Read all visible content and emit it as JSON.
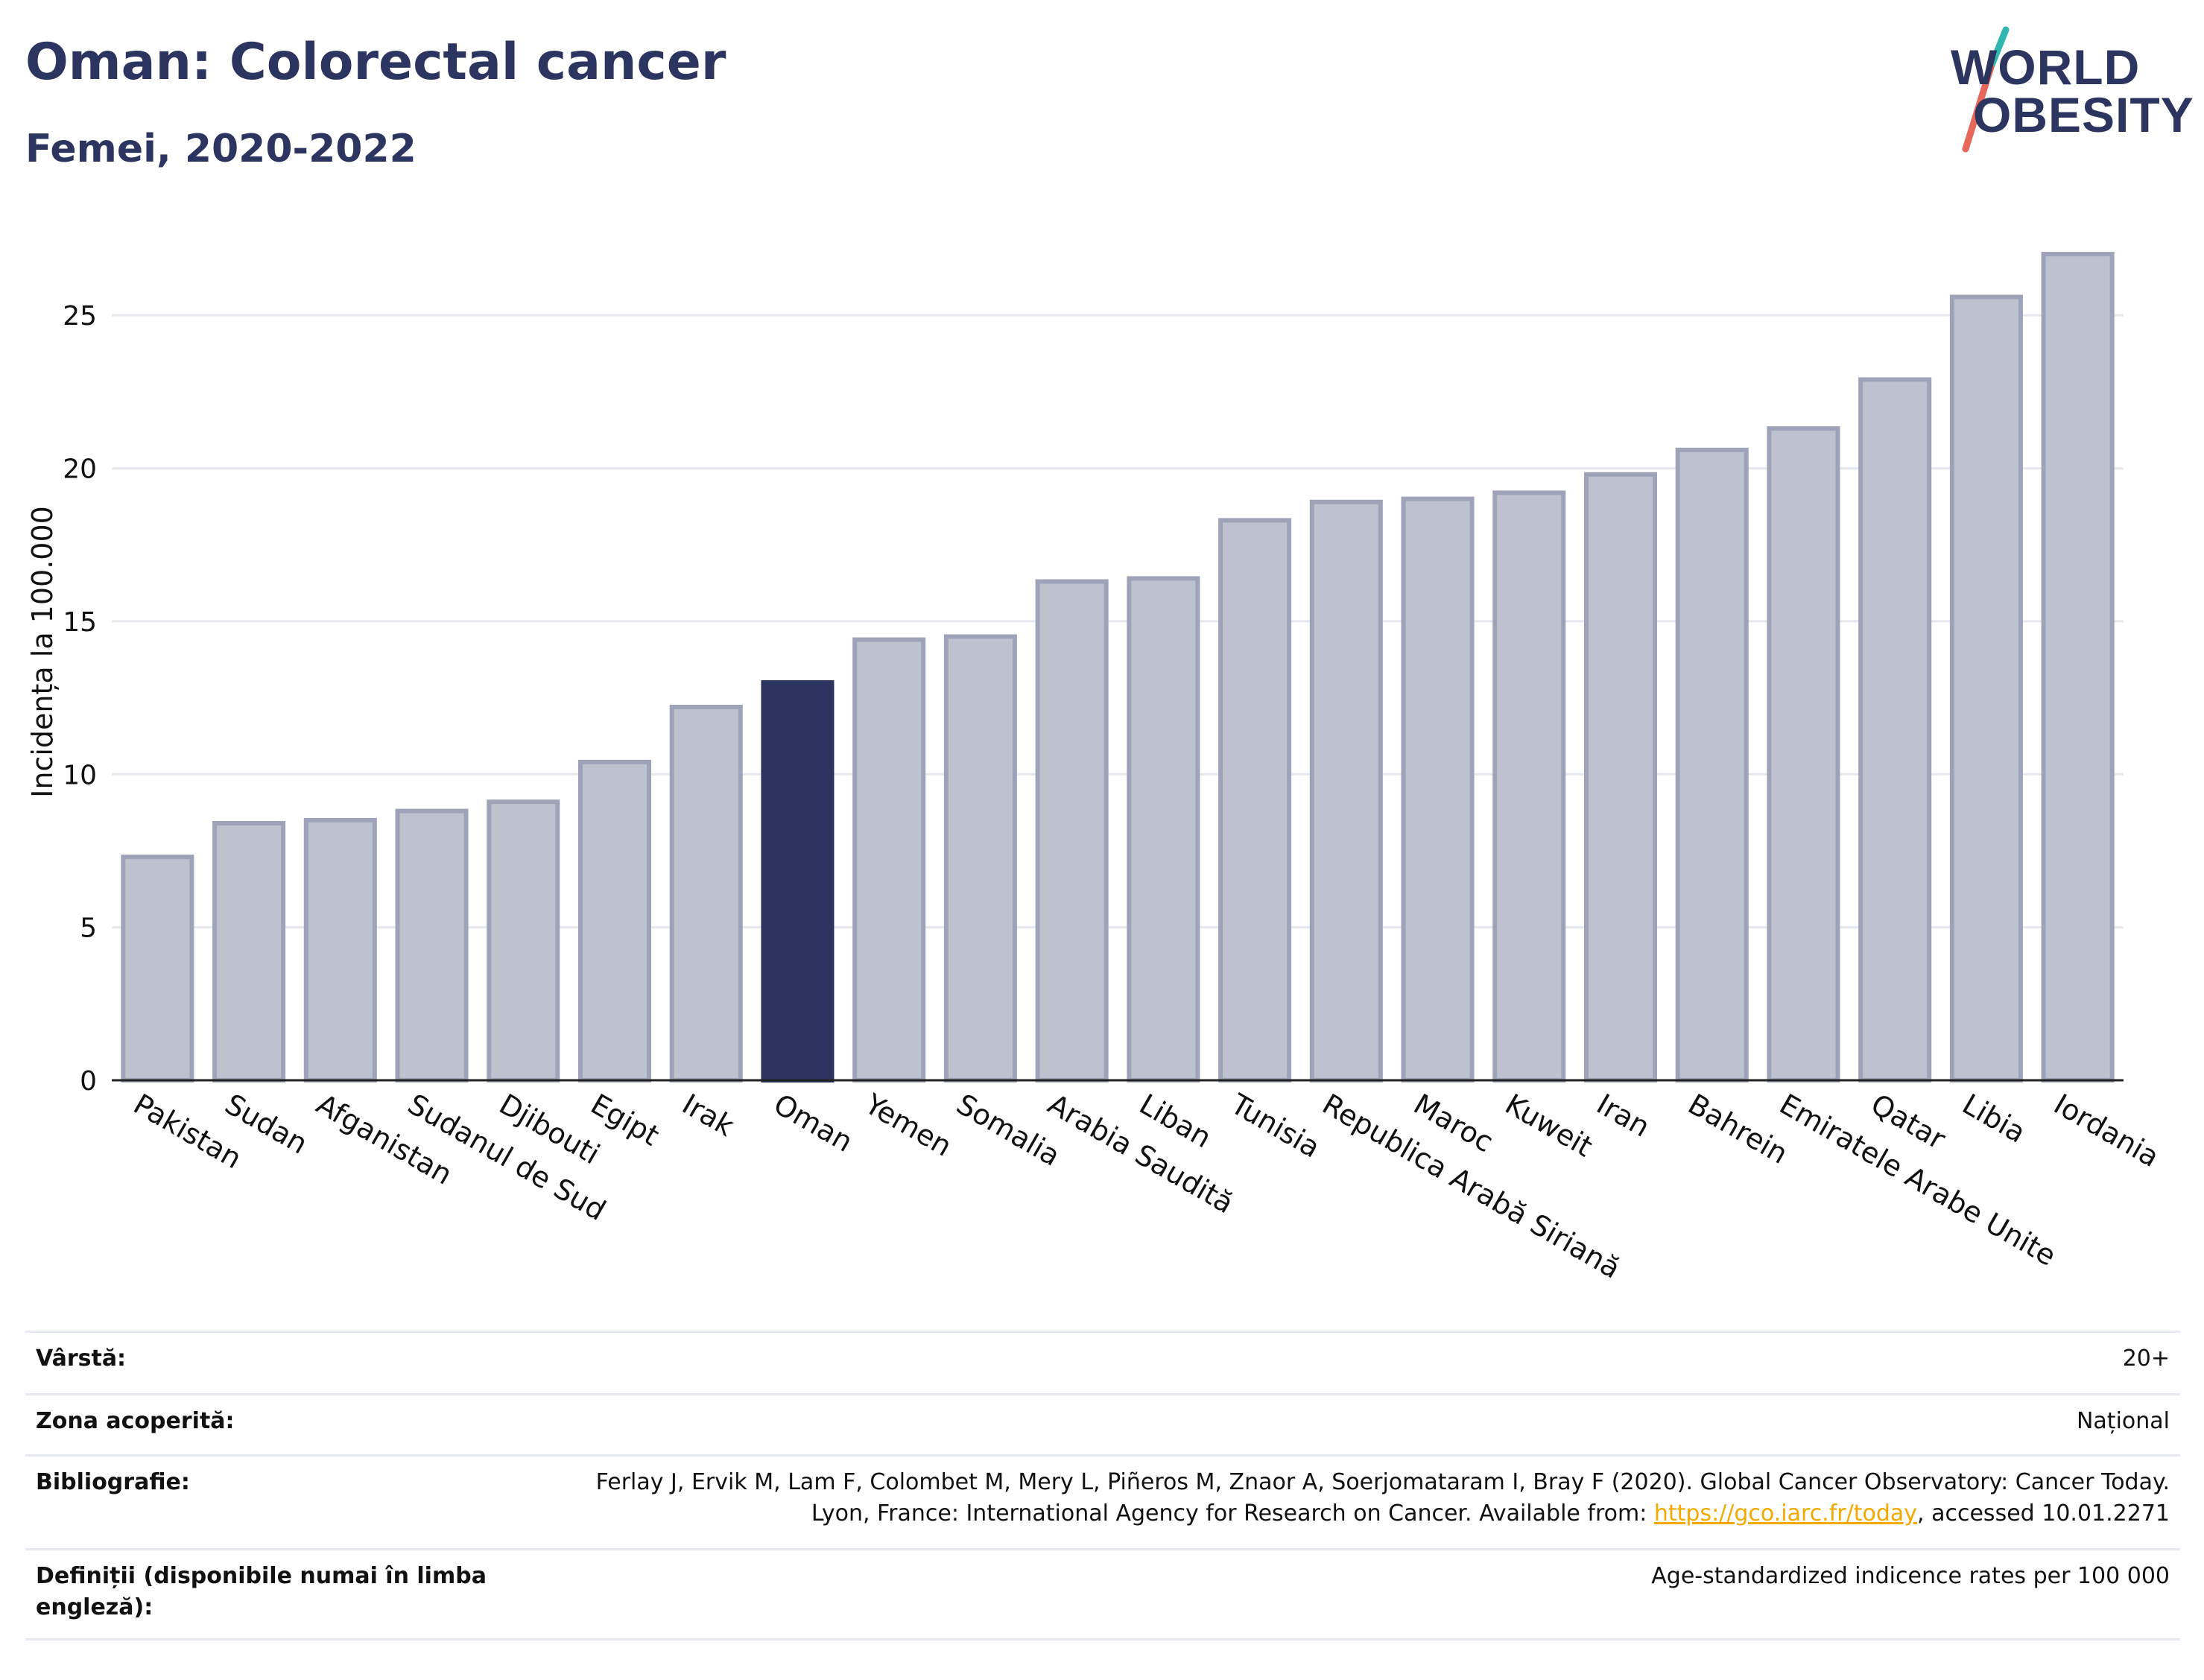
{
  "header": {
    "title": "Oman: Colorectal cancer",
    "subtitle": "Femei, 2020-2022"
  },
  "logo": {
    "line1": "WORLD",
    "line2": "OBESITY"
  },
  "colors": {
    "highlight": "#2b3560",
    "bar": "#bec1ce",
    "bar_outline": "#9fa3b9",
    "text": "#2b3560",
    "link": "#f2a900"
  },
  "chart_data": {
    "type": "bar",
    "ylabel": "Incidența la 100.000",
    "ylim": [
      0,
      28
    ],
    "yticks": [
      0,
      5,
      10,
      15,
      20,
      25
    ],
    "grid": true,
    "highlight": "Oman",
    "categories": [
      "Pakistan",
      "Sudan",
      "Afganistan",
      "Sudanul de Sud",
      "Djibouti",
      "Egipt",
      "Irak",
      "Oman",
      "Yemen",
      "Somalia",
      "Arabia Saudită",
      "Liban",
      "Tunisia",
      "Republica Arabă Siriană",
      "Maroc",
      "Kuweit",
      "Iran",
      "Bahrein",
      "Emiratele Arabe Unite",
      "Qatar",
      "Libia",
      "Iordania"
    ],
    "values": [
      7.3,
      8.4,
      8.5,
      8.8,
      9.1,
      10.4,
      12.2,
      13.0,
      14.4,
      14.5,
      16.3,
      16.4,
      18.3,
      18.9,
      19.0,
      19.2,
      19.8,
      20.6,
      21.3,
      22.9,
      25.6,
      27.0
    ]
  },
  "meta": {
    "age_label": "Vârstă:",
    "age_value": "20+",
    "coverage_label": "Zona acoperită:",
    "coverage_value": "Național",
    "bibliography_label": "Bibliografie:",
    "bibliography_text": "Ferlay J, Ervik M, Lam F, Colombet M, Mery L, Piñeros M, Znaor A, Soerjomataram I, Bray F (2020). Global Cancer Observatory: Cancer Today. Lyon, France: International Agency for Research on Cancer. Available from: ",
    "bibliography_link": "https://gco.iarc.fr/today",
    "bibliography_tail": ", accessed 10.01.2271",
    "definitions_label": "Definiții (disponibile numai în limba engleză):",
    "definitions_value": "Age-standardized indicence rates per 100 000"
  }
}
